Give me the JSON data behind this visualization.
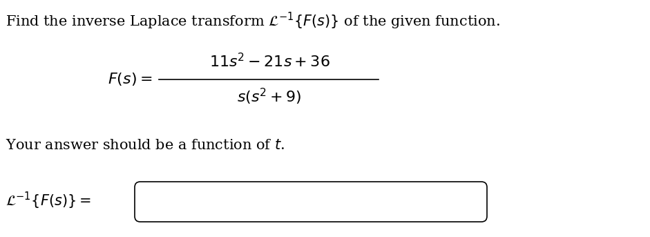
{
  "line1": "Find the inverse Laplace transform $\\mathcal{L}^{-1}\\{F(s)\\}$ of the given function.",
  "formula_num": "$11s^2 - 21s + 36$",
  "formula_den": "$s(s^2 + 9)$",
  "formula_lhs": "$F(s) = $",
  "line3": "Your answer should be a function of $t$.",
  "line4_lhs": "$\\mathcal{L}^{-1}\\{F(s)\\} = $",
  "bg_color": "#ffffff",
  "text_color": "#000000",
  "font_size_main": 15,
  "font_size_formula": 16
}
